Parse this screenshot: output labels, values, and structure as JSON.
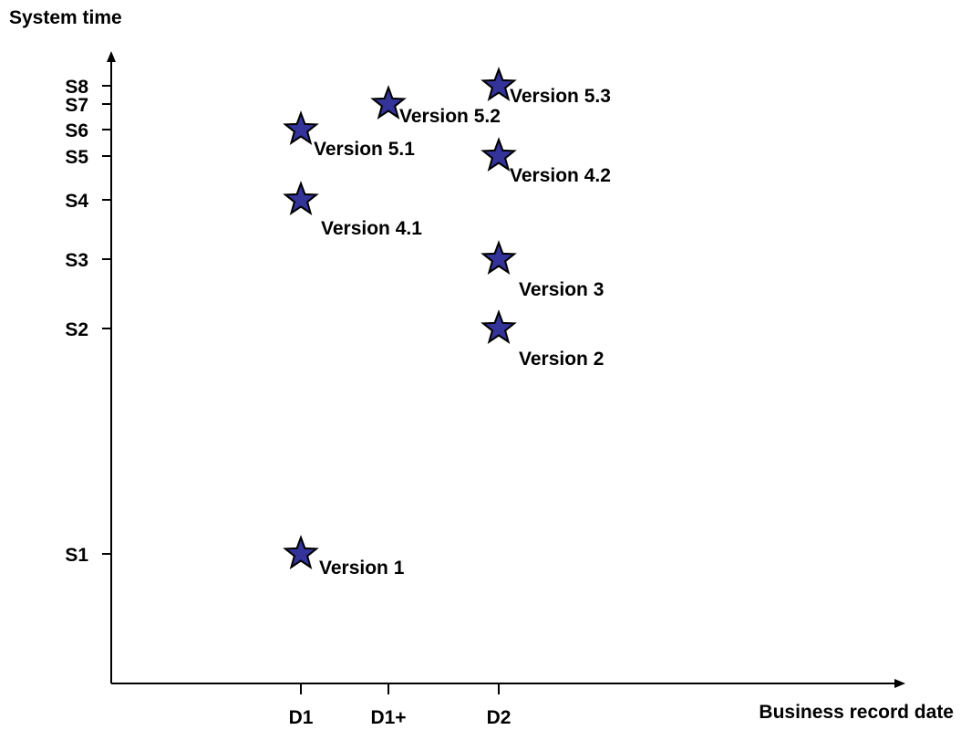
{
  "chart_data": {
    "type": "scatter",
    "title": "",
    "xlabel": "Business record date",
    "ylabel": "System time",
    "x_ticks": [
      "D1",
      "D1+",
      "D2"
    ],
    "y_ticks": [
      "S1",
      "S2",
      "S3",
      "S4",
      "S5",
      "S6",
      "S7",
      "S8"
    ],
    "grid": false,
    "marker": "star",
    "marker_color": "#333399",
    "points": [
      {
        "label": "Version 1",
        "x": "D1",
        "y": "S1"
      },
      {
        "label": "Version 4.1",
        "x": "D1",
        "y": "S4"
      },
      {
        "label": "Version 5.1",
        "x": "D1",
        "y": "S6"
      },
      {
        "label": "Version 5.2",
        "x": "D1+",
        "y": "S7"
      },
      {
        "label": "Version 2",
        "x": "D2",
        "y": "S2"
      },
      {
        "label": "Version 3",
        "x": "D2",
        "y": "S3"
      },
      {
        "label": "Version 4.2",
        "x": "D2",
        "y": "S5"
      },
      {
        "label": "Version 5.3",
        "x": "D2",
        "y": "S8"
      }
    ]
  }
}
